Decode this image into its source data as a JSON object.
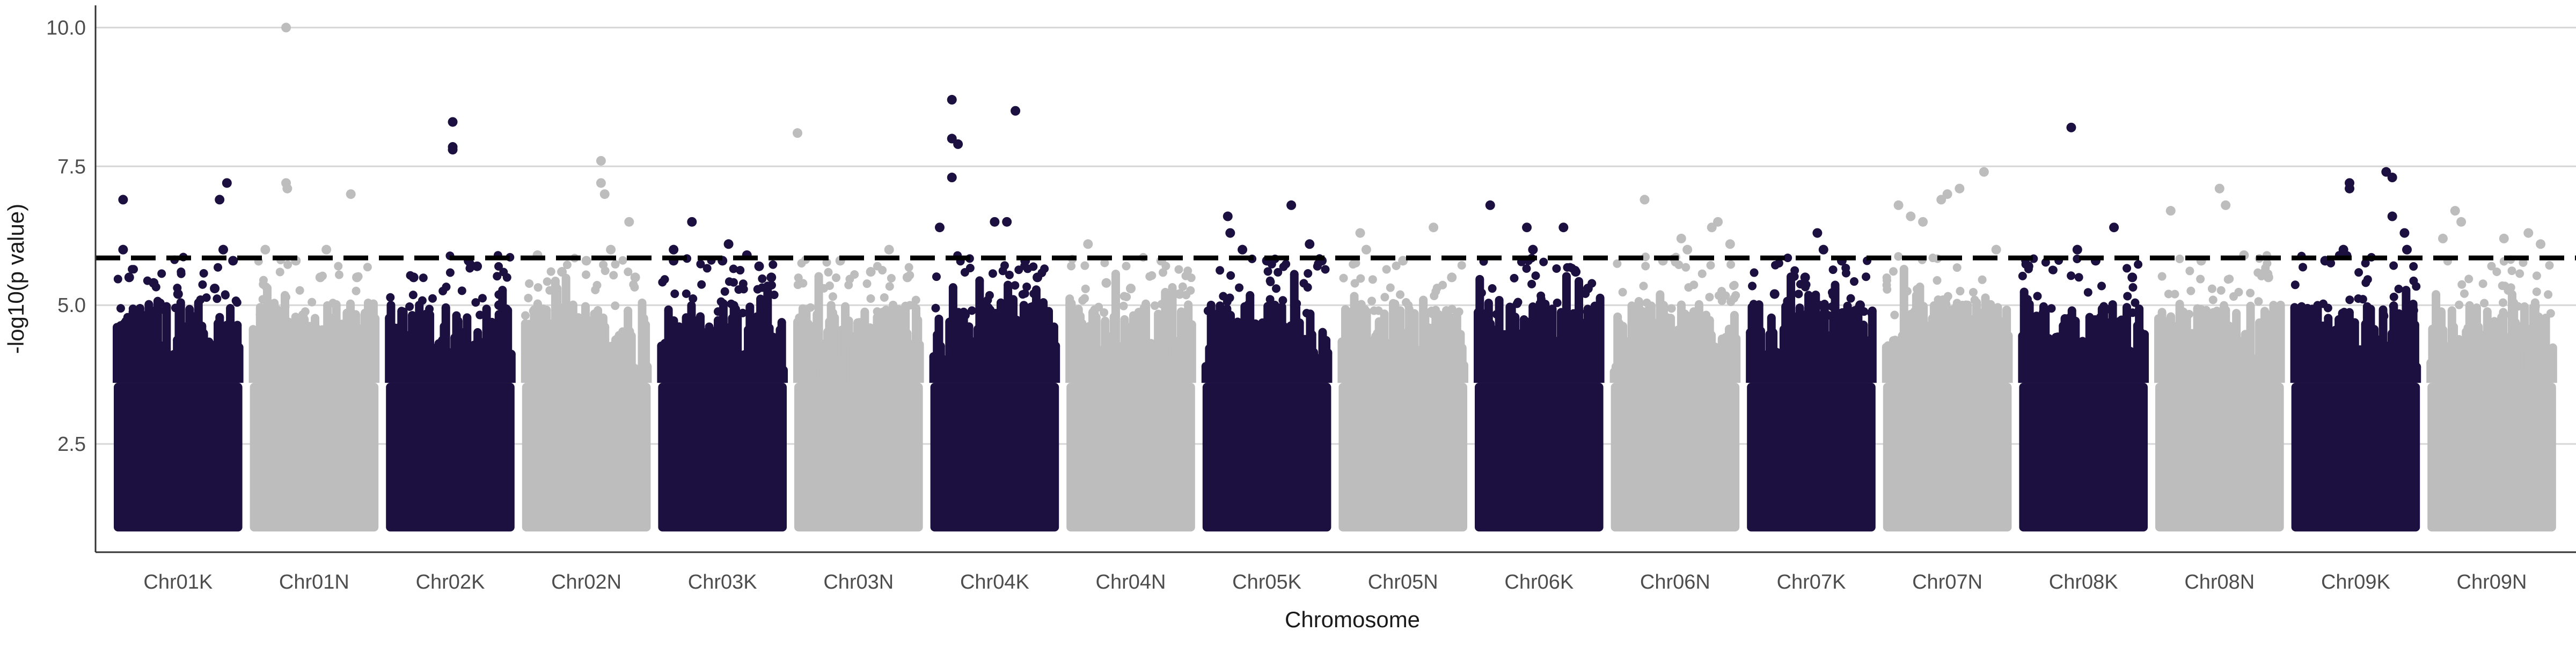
{
  "chart_data": {
    "type": "scatter",
    "subtype": "manhattan",
    "title": "",
    "xlabel": "Chromosome",
    "ylabel": "-log10(p value)",
    "ylim": [
      0.55,
      10.4
    ],
    "yticks": [
      2.5,
      5.0,
      7.5,
      10.0
    ],
    "ytick_labels": [
      "2.5",
      "5.0",
      "7.5",
      "10.0"
    ],
    "grid": "horizontal major",
    "legend": "none",
    "threshold": {
      "value": 5.85,
      "style": "dashed",
      "color": "#000000"
    },
    "colors": {
      "odd": "#1c1040",
      "even": "#bdbdbd"
    },
    "categories": [
      "Chr01K",
      "Chr01N",
      "Chr02K",
      "Chr02N",
      "Chr03K",
      "Chr03N",
      "Chr04K",
      "Chr04N",
      "Chr05K",
      "Chr05N",
      "Chr06K",
      "Chr06N",
      "Chr07K",
      "Chr07N",
      "Chr08K",
      "Chr08N",
      "Chr09K",
      "Chr09N"
    ],
    "series": [
      {
        "chromosome": "Chr01K",
        "color": "#1c1040",
        "floor": 1.0,
        "bulk_top": 3.6,
        "peaks": [
          [
            0.05,
            6.9
          ],
          [
            0.05,
            6.0
          ],
          [
            0.1,
            5.5
          ],
          [
            0.3,
            5.4
          ],
          [
            0.5,
            5.2
          ],
          [
            0.8,
            5.3
          ],
          [
            0.84,
            6.9
          ],
          [
            0.9,
            7.2
          ],
          [
            0.87,
            6.0
          ],
          [
            0.95,
            5.8
          ]
        ]
      },
      {
        "chromosome": "Chr01N",
        "color": "#bdbdbd",
        "floor": 1.0,
        "bulk_top": 3.6,
        "peaks": [
          [
            0.1,
            6.0
          ],
          [
            0.27,
            7.2
          ],
          [
            0.28,
            7.1
          ],
          [
            0.27,
            10.0
          ],
          [
            0.35,
            5.8
          ],
          [
            0.55,
            5.5
          ],
          [
            0.6,
            6.0
          ],
          [
            0.8,
            7.0
          ],
          [
            0.85,
            5.5
          ]
        ]
      },
      {
        "chromosome": "Chr02K",
        "color": "#1c1040",
        "floor": 1.0,
        "bulk_top": 3.6,
        "peaks": [
          [
            0.2,
            5.5
          ],
          [
            0.52,
            8.3
          ],
          [
            0.52,
            7.85
          ],
          [
            0.52,
            7.8
          ],
          [
            0.65,
            5.8
          ],
          [
            0.72,
            5.7
          ],
          [
            0.9,
            5.0
          ]
        ]
      },
      {
        "chromosome": "Chr02N",
        "color": "#bdbdbd",
        "floor": 1.0,
        "bulk_top": 3.6,
        "peaks": [
          [
            0.1,
            5.9
          ],
          [
            0.3,
            5.6
          ],
          [
            0.5,
            5.8
          ],
          [
            0.62,
            7.6
          ],
          [
            0.62,
            7.2
          ],
          [
            0.65,
            7.0
          ],
          [
            0.7,
            6.0
          ],
          [
            0.85,
            6.5
          ],
          [
            0.9,
            5.5
          ]
        ]
      },
      {
        "chromosome": "Chr03K",
        "color": "#1c1040",
        "floor": 1.0,
        "bulk_top": 3.6,
        "peaks": [
          [
            0.1,
            5.8
          ],
          [
            0.1,
            6.0
          ],
          [
            0.25,
            6.5
          ],
          [
            0.5,
            5.8
          ],
          [
            0.55,
            6.1
          ],
          [
            0.7,
            5.9
          ],
          [
            0.8,
            5.7
          ],
          [
            0.9,
            5.5
          ]
        ]
      },
      {
        "chromosome": "Chr03N",
        "color": "#bdbdbd",
        "floor": 1.0,
        "bulk_top": 3.6,
        "peaks": [
          [
            0.0,
            8.1
          ],
          [
            0.35,
            5.8
          ],
          [
            0.6,
            5.6
          ],
          [
            0.75,
            6.0
          ],
          [
            0.9,
            5.5
          ]
        ]
      },
      {
        "chromosome": "Chr04K",
        "color": "#1c1040",
        "floor": 1.0,
        "bulk_top": 3.6,
        "peaks": [
          [
            0.05,
            6.4
          ],
          [
            0.15,
            8.7
          ],
          [
            0.15,
            8.0
          ],
          [
            0.2,
            7.9
          ],
          [
            0.15,
            7.3
          ],
          [
            0.5,
            6.5
          ],
          [
            0.6,
            6.5
          ],
          [
            0.67,
            8.5
          ],
          [
            0.75,
            5.8
          ],
          [
            0.85,
            5.5
          ]
        ]
      },
      {
        "chromosome": "Chr04N",
        "color": "#bdbdbd",
        "floor": 1.0,
        "bulk_top": 3.6,
        "peaks": [
          [
            0.15,
            6.1
          ],
          [
            0.3,
            5.4
          ],
          [
            0.5,
            5.3
          ],
          [
            0.75,
            5.8
          ],
          [
            0.9,
            5.2
          ]
        ]
      },
      {
        "chromosome": "Chr05K",
        "color": "#1c1040",
        "floor": 1.0,
        "bulk_top": 3.6,
        "peaks": [
          [
            0.18,
            6.6
          ],
          [
            0.2,
            6.3
          ],
          [
            0.3,
            6.0
          ],
          [
            0.5,
            5.8
          ],
          [
            0.7,
            6.8
          ],
          [
            0.85,
            6.1
          ],
          [
            0.95,
            5.8
          ]
        ]
      },
      {
        "chromosome": "Chr05N",
        "color": "#bdbdbd",
        "floor": 1.0,
        "bulk_top": 3.6,
        "peaks": [
          [
            0.15,
            6.3
          ],
          [
            0.2,
            6.0
          ],
          [
            0.5,
            5.8
          ],
          [
            0.75,
            6.4
          ],
          [
            0.9,
            5.5
          ]
        ]
      },
      {
        "chromosome": "Chr06K",
        "color": "#1c1040",
        "floor": 1.0,
        "bulk_top": 3.6,
        "peaks": [
          [
            0.1,
            6.8
          ],
          [
            0.4,
            6.4
          ],
          [
            0.45,
            6.0
          ],
          [
            0.7,
            6.4
          ],
          [
            0.8,
            5.6
          ],
          [
            0.9,
            5.3
          ]
        ]
      },
      {
        "chromosome": "Chr06N",
        "color": "#bdbdbd",
        "floor": 1.0,
        "bulk_top": 3.6,
        "peaks": [
          [
            0.25,
            6.9
          ],
          [
            0.4,
            5.8
          ],
          [
            0.55,
            6.2
          ],
          [
            0.6,
            6.0
          ],
          [
            0.8,
            6.4
          ],
          [
            0.85,
            6.5
          ],
          [
            0.95,
            6.1
          ]
        ]
      },
      {
        "chromosome": "Chr07K",
        "color": "#1c1040",
        "floor": 1.0,
        "bulk_top": 3.6,
        "peaks": [
          [
            0.2,
            5.2
          ],
          [
            0.45,
            5.5
          ],
          [
            0.55,
            6.3
          ],
          [
            0.6,
            6.0
          ],
          [
            0.75,
            5.8
          ],
          [
            0.9,
            5.0
          ]
        ]
      },
      {
        "chromosome": "Chr07N",
        "color": "#bdbdbd",
        "floor": 1.0,
        "bulk_top": 3.6,
        "peaks": [
          [
            0.1,
            6.8
          ],
          [
            0.2,
            6.6
          ],
          [
            0.3,
            6.5
          ],
          [
            0.45,
            6.9
          ],
          [
            0.5,
            7.0
          ],
          [
            0.6,
            7.1
          ],
          [
            0.8,
            7.4
          ],
          [
            0.9,
            6.0
          ]
        ]
      },
      {
        "chromosome": "Chr08K",
        "color": "#1c1040",
        "floor": 1.0,
        "bulk_top": 3.6,
        "peaks": [
          [
            0.05,
            5.7
          ],
          [
            0.4,
            8.2
          ],
          [
            0.45,
            6.0
          ],
          [
            0.6,
            5.8
          ],
          [
            0.75,
            6.4
          ],
          [
            0.9,
            5.5
          ]
        ]
      },
      {
        "chromosome": "Chr08N",
        "color": "#bdbdbd",
        "floor": 1.0,
        "bulk_top": 3.6,
        "peaks": [
          [
            0.1,
            6.7
          ],
          [
            0.35,
            5.8
          ],
          [
            0.5,
            7.1
          ],
          [
            0.55,
            6.8
          ],
          [
            0.7,
            5.9
          ],
          [
            0.9,
            5.5
          ]
        ]
      },
      {
        "chromosome": "Chr09K",
        "color": "#1c1040",
        "floor": 1.0,
        "bulk_top": 3.6,
        "peaks": [
          [
            0.25,
            5.8
          ],
          [
            0.4,
            6.0
          ],
          [
            0.45,
            7.2
          ],
          [
            0.45,
            7.1
          ],
          [
            0.75,
            7.4
          ],
          [
            0.8,
            7.3
          ],
          [
            0.8,
            6.6
          ],
          [
            0.9,
            6.3
          ],
          [
            0.92,
            6.0
          ]
        ]
      },
      {
        "chromosome": "Chr09N",
        "color": "#bdbdbd",
        "floor": 1.0,
        "bulk_top": 3.6,
        "peaks": [
          [
            0.1,
            6.2
          ],
          [
            0.2,
            6.7
          ],
          [
            0.25,
            6.5
          ],
          [
            0.6,
            6.2
          ],
          [
            0.8,
            6.3
          ],
          [
            0.9,
            6.1
          ]
        ]
      }
    ]
  }
}
